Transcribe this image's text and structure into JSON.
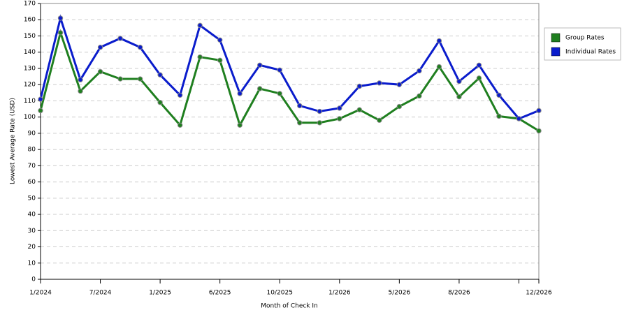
{
  "chart_data": {
    "type": "line",
    "x_label": "Month of Check In",
    "y_label": "Lowest Average Rate (USD)",
    "categories": [
      "1/2024",
      null,
      null,
      "7/2024",
      null,
      null,
      "1/2025",
      null,
      null,
      "6/2025",
      null,
      null,
      "10/2025",
      null,
      null,
      "1/2026",
      null,
      null,
      "5/2026",
      null,
      null,
      "8/2026",
      null,
      null,
      null,
      "12/2026"
    ],
    "series": [
      {
        "name": "Group Rates",
        "color": "#1f7f1f",
        "values": [
          104,
          152,
          116,
          128,
          123.5,
          123.5,
          109,
          95,
          137,
          135,
          95,
          117.5,
          114.5,
          96.5,
          96.5,
          99,
          104.5,
          98,
          106.5,
          113,
          131,
          112.5,
          124,
          100.5,
          99,
          91.5
        ]
      },
      {
        "name": "Individual Rates",
        "color": "#0a1ccc",
        "values": [
          111,
          161,
          123,
          143,
          148.5,
          143,
          126,
          113.5,
          156.5,
          147.5,
          114.5,
          132,
          129,
          107,
          103.5,
          105.5,
          119,
          121,
          120,
          128.5,
          147,
          122,
          132,
          113.5,
          99,
          104
        ]
      }
    ],
    "ylim": [
      0,
      170
    ],
    "yticks": [
      0,
      10,
      20,
      30,
      40,
      50,
      60,
      70,
      80,
      90,
      100,
      110,
      120,
      130,
      140,
      150,
      160,
      170
    ],
    "grid": true,
    "legend": "right"
  }
}
